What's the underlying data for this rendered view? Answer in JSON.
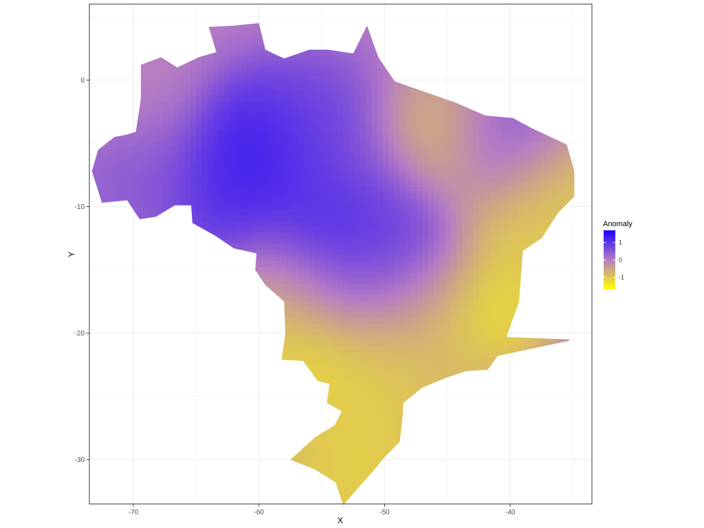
{
  "chart_data": {
    "type": "heatmap",
    "title": "",
    "xlabel": "X",
    "ylabel": "Y",
    "xlim": [
      -73.5,
      -33.5
    ],
    "ylim": [
      -33.5,
      6
    ],
    "x_ticks": [
      -70,
      -60,
      -50,
      -40
    ],
    "y_ticks": [
      0,
      -10,
      -20,
      -30
    ],
    "x_tick_labels": [
      "-70",
      "-60",
      "-50",
      "-40"
    ],
    "y_tick_labels": [
      "0",
      "-10",
      "-20",
      "-30"
    ],
    "grid": true,
    "legend_position": "right",
    "legend": {
      "title": "Anomaly",
      "ticks": [
        1,
        0,
        -1
      ],
      "tick_labels": [
        "1",
        "0",
        "-1"
      ],
      "range": [
        -1.7,
        1.7
      ],
      "colors": {
        "high": "#1A00FF",
        "mid": "#B57CC4",
        "low": "#FFFF00"
      }
    },
    "outline": [
      [
        -71.5,
        -4.5
      ],
      [
        -70.5,
        -4.3
      ],
      [
        -69.8,
        -4.1
      ],
      [
        -69.4,
        -1.5
      ],
      [
        -69.4,
        1.2
      ],
      [
        -67.8,
        1.8
      ],
      [
        -66.5,
        1.0
      ],
      [
        -64.8,
        1.8
      ],
      [
        -63.4,
        2.2
      ],
      [
        -64.0,
        4.2
      ],
      [
        -62.0,
        4.3
      ],
      [
        -60.0,
        4.5
      ],
      [
        -59.5,
        2.4
      ],
      [
        -58.0,
        1.7
      ],
      [
        -56.0,
        2.4
      ],
      [
        -54.5,
        2.4
      ],
      [
        -52.5,
        2.1
      ],
      [
        -51.4,
        4.3
      ],
      [
        -50.5,
        1.8
      ],
      [
        -49.2,
        -0.1
      ],
      [
        -47.5,
        -0.7
      ],
      [
        -44.3,
        -1.8
      ],
      [
        -42.0,
        -2.8
      ],
      [
        -39.8,
        -3.0
      ],
      [
        -38.3,
        -3.8
      ],
      [
        -35.5,
        -5.1
      ],
      [
        -34.9,
        -7.2
      ],
      [
        -34.9,
        -9.2
      ],
      [
        -36.2,
        -10.5
      ],
      [
        -37.5,
        -12.5
      ],
      [
        -39.0,
        -13.5
      ],
      [
        -39.3,
        -17.5
      ],
      [
        -40.3,
        -20.3
      ],
      [
        -35.3,
        -20.5
      ],
      [
        -35.3,
        -20.6
      ],
      [
        -41.0,
        -21.8
      ],
      [
        -41.8,
        -22.9
      ],
      [
        -43.5,
        -23.0
      ],
      [
        -45.0,
        -23.5
      ],
      [
        -47.0,
        -24.3
      ],
      [
        -48.5,
        -25.5
      ],
      [
        -48.6,
        -27.0
      ],
      [
        -48.8,
        -28.6
      ],
      [
        -50.0,
        -29.8
      ],
      [
        -51.0,
        -31.0
      ],
      [
        -52.0,
        -32.1
      ],
      [
        -53.3,
        -33.6
      ],
      [
        -53.9,
        -31.8
      ],
      [
        -55.5,
        -30.8
      ],
      [
        -57.5,
        -30.0
      ],
      [
        -55.5,
        -28.2
      ],
      [
        -54.0,
        -27.3
      ],
      [
        -53.4,
        -26.2
      ],
      [
        -54.6,
        -25.5
      ],
      [
        -54.4,
        -24.0
      ],
      [
        -55.3,
        -23.8
      ],
      [
        -56.5,
        -22.2
      ],
      [
        -58.2,
        -22.1
      ],
      [
        -57.9,
        -20.0
      ],
      [
        -58.0,
        -17.5
      ],
      [
        -59.5,
        -16.2
      ],
      [
        -60.3,
        -15.0
      ],
      [
        -60.2,
        -13.7
      ],
      [
        -62.0,
        -13.3
      ],
      [
        -63.5,
        -12.3
      ],
      [
        -65.3,
        -11.3
      ],
      [
        -65.4,
        -9.9
      ],
      [
        -66.7,
        -9.9
      ],
      [
        -68.2,
        -10.8
      ],
      [
        -69.5,
        -11.0
      ],
      [
        -70.5,
        -9.5
      ],
      [
        -72.5,
        -9.7
      ],
      [
        -73.3,
        -7.2
      ],
      [
        -72.8,
        -5.5
      ],
      [
        -71.5,
        -4.5
      ]
    ],
    "anomaly_centers": [
      {
        "x": -60.5,
        "y": -5.0,
        "value": 1.6
      },
      {
        "x": -56.0,
        "y": -3.0,
        "value": 0.9
      },
      {
        "x": -62.5,
        "y": -8.5,
        "value": 1.3
      },
      {
        "x": -55.0,
        "y": -12.0,
        "value": 1.6
      },
      {
        "x": -48.5,
        "y": -13.0,
        "value": 1.2
      },
      {
        "x": -40.5,
        "y": -5.5,
        "value": 1.0
      },
      {
        "x": -52.0,
        "y": -9.0,
        "value": 0.8
      },
      {
        "x": -45.5,
        "y": -5.0,
        "value": -1.1
      },
      {
        "x": -37.0,
        "y": -8.5,
        "value": -1.4
      },
      {
        "x": -40.0,
        "y": -11.5,
        "value": -1.2
      },
      {
        "x": -42.5,
        "y": -17.8,
        "value": -1.7
      },
      {
        "x": -56.5,
        "y": -22.0,
        "value": -1.5
      },
      {
        "x": -51.5,
        "y": -21.8,
        "value": -1.2
      },
      {
        "x": -47.0,
        "y": -21.8,
        "value": -0.9
      },
      {
        "x": -50.0,
        "y": -26.0,
        "value": -1.2
      },
      {
        "x": -53.0,
        "y": -31.0,
        "value": -1.4
      },
      {
        "x": -56.0,
        "y": -29.5,
        "value": -1.0
      },
      {
        "x": -57.5,
        "y": -16.5,
        "value": -0.8
      },
      {
        "x": -47.0,
        "y": -17.5,
        "value": -0.5
      },
      {
        "x": -52.0,
        "y": -16.0,
        "value": 0.5
      },
      {
        "x": -70.0,
        "y": -1.0,
        "value": -0.1
      },
      {
        "x": -69.5,
        "y": -7.0,
        "value": 0.6
      }
    ]
  }
}
